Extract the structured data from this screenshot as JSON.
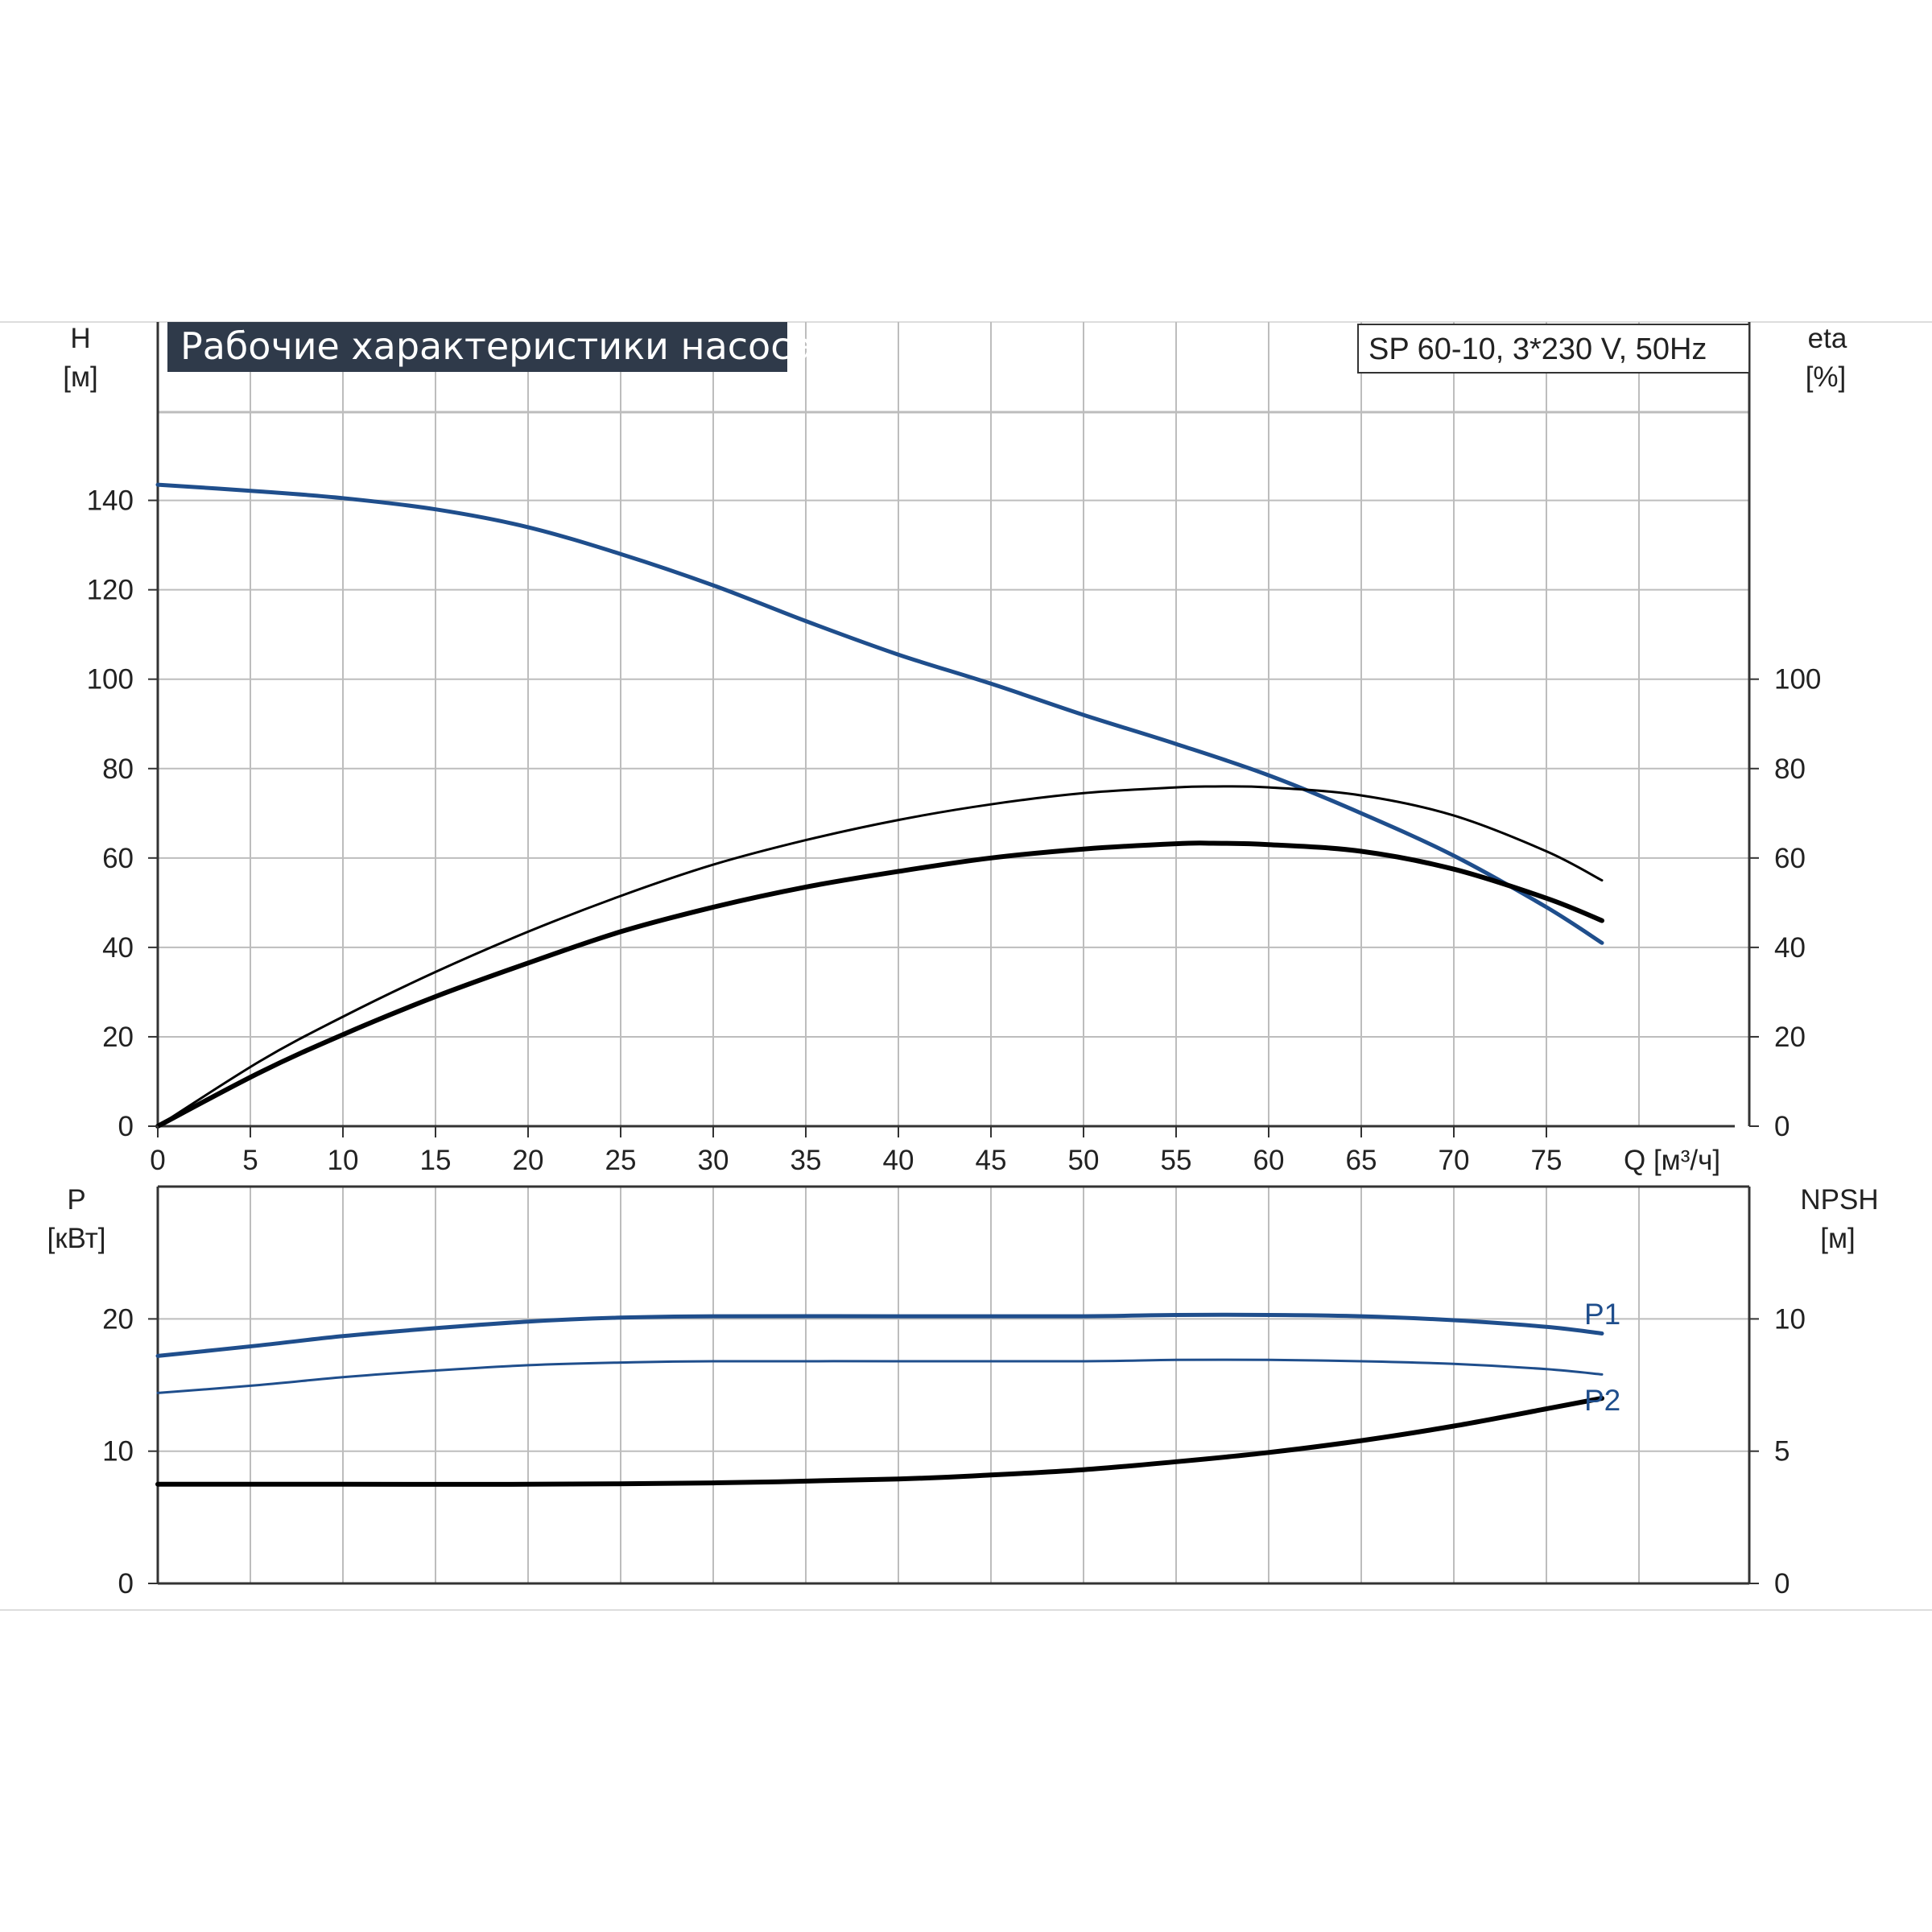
{
  "title": "Рабочие характеристики насоса",
  "model": "SP 60-10, 3*230 V, 50Hz",
  "colors": {
    "blue": "#1f4e8c",
    "black": "#000000",
    "grid": "#b9b9b9",
    "title_bg": "#2f3a4a"
  },
  "chart_data": [
    {
      "type": "line",
      "xlabel": "Q [м³/ч]",
      "xlim": [
        0,
        80
      ],
      "x_ticks": [
        "0",
        "5",
        "10",
        "15",
        "20",
        "25",
        "30",
        "35",
        "40",
        "45",
        "50",
        "55",
        "60",
        "65",
        "70",
        "75"
      ],
      "left_axis": {
        "label_line1": "H",
        "label_line2": "[м]",
        "ylim": [
          0,
          160
        ],
        "ticks": [
          "0",
          "20",
          "40",
          "60",
          "80",
          "100",
          "120",
          "140"
        ]
      },
      "right_axis": {
        "label_line1": "eta",
        "label_line2": "[%]",
        "ylim": [
          0,
          160
        ],
        "ticks": [
          "0",
          "20",
          "40",
          "60",
          "80",
          "100"
        ]
      },
      "series": [
        {
          "axis": "left",
          "color": "#1f4e8c",
          "x": [
            0,
            5.5,
            10,
            15,
            20,
            25,
            30,
            35,
            40,
            45,
            50,
            55,
            60,
            65,
            70,
            75,
            78
          ],
          "y": [
            143.5,
            142,
            140.5,
            138,
            134,
            128,
            121,
            113,
            105.5,
            99,
            92,
            85.5,
            78.5,
            70,
            60.5,
            49,
            41
          ]
        },
        {
          "axis": "right",
          "color": "#000000",
          "x": [
            0,
            5.5,
            10,
            15,
            20,
            25,
            30,
            35,
            40,
            45,
            50,
            55,
            57,
            60,
            65,
            70,
            75,
            78
          ],
          "y": [
            0,
            14.5,
            24.5,
            34.5,
            43.5,
            51.5,
            58.5,
            64,
            68.5,
            72,
            74.5,
            75.8,
            76,
            75.8,
            74,
            69.5,
            61.5,
            55
          ]
        },
        {
          "axis": "right",
          "color": "#000000",
          "x": [
            0,
            5.5,
            10,
            15,
            20,
            25,
            30,
            35,
            40,
            45,
            50,
            55,
            57,
            60,
            65,
            70,
            75,
            78
          ],
          "y": [
            0,
            12,
            20.5,
            29,
            36.5,
            43.5,
            49,
            53.5,
            57,
            60,
            62,
            63.2,
            63.3,
            63,
            61.5,
            57.5,
            51,
            46
          ]
        }
      ]
    },
    {
      "type": "line",
      "xlim": [
        0,
        80
      ],
      "left_axis": {
        "label_line1": "P",
        "label_line2": "[кВт]",
        "ylim": [
          0,
          30
        ],
        "ticks": [
          "0",
          "10",
          "20"
        ]
      },
      "right_axis": {
        "label_line1": "NPSH",
        "label_line2": "[м]",
        "ylim": [
          0,
          15
        ],
        "ticks": [
          "0",
          "5",
          "10"
        ]
      },
      "series": [
        {
          "name": "P1",
          "axis": "left",
          "color": "#1f4e8c",
          "x": [
            0,
            5.5,
            10,
            15,
            20,
            25,
            30,
            40,
            50,
            55,
            60,
            65,
            70,
            75,
            78
          ],
          "y": [
            17.2,
            18.0,
            18.7,
            19.3,
            19.8,
            20.1,
            20.2,
            20.2,
            20.2,
            20.3,
            20.3,
            20.2,
            19.9,
            19.4,
            18.9
          ]
        },
        {
          "name": "",
          "axis": "left",
          "color": "#1f4e8c",
          "x": [
            0,
            5.5,
            10,
            15,
            20,
            25,
            30,
            40,
            50,
            55,
            60,
            65,
            70,
            75,
            78
          ],
          "y": [
            14.4,
            15.0,
            15.6,
            16.1,
            16.5,
            16.7,
            16.8,
            16.8,
            16.8,
            16.9,
            16.9,
            16.8,
            16.6,
            16.2,
            15.8
          ]
        },
        {
          "name": "P2",
          "axis": "right",
          "color": "#000000",
          "x": [
            0,
            5.5,
            10,
            20,
            30,
            40,
            45,
            50,
            55,
            60,
            65,
            70,
            75,
            78
          ],
          "y": [
            3.75,
            3.75,
            3.75,
            3.75,
            3.8,
            3.95,
            4.1,
            4.3,
            4.6,
            4.95,
            5.4,
            5.95,
            6.6,
            7.0
          ]
        }
      ]
    }
  ]
}
